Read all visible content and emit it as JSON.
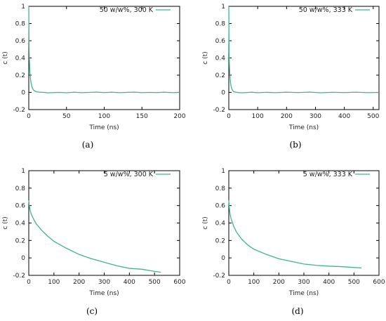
{
  "chart_data": [
    {
      "type": "line",
      "caption": "(a)",
      "legend": "50 w/w%, 300 K",
      "xlabel": "Time (ns)",
      "ylabel": "c (t)",
      "xlim": [
        0,
        200
      ],
      "ylim": [
        -0.2,
        1
      ],
      "xticks": [
        "0",
        "50",
        "100",
        "150",
        "200"
      ],
      "yticks": [
        "-0.2",
        "0",
        "0.2",
        "0.4",
        "0.6",
        "0.8",
        "1"
      ],
      "legend_position": "top-right",
      "line_color": "#3fb58c",
      "series": [
        {
          "x": [
            0,
            0.3,
            0.7,
            1,
            1.5,
            2,
            3,
            4,
            5,
            6,
            8,
            10,
            12,
            15,
            20,
            25,
            30,
            40,
            50,
            60,
            70,
            80,
            90,
            100,
            110,
            120,
            130,
            140,
            150,
            160,
            170,
            180,
            190,
            200
          ],
          "y": [
            1,
            0.6,
            0.42,
            0.33,
            0.24,
            0.18,
            0.11,
            0.07,
            0.045,
            0.03,
            0.015,
            0.008,
            0.004,
            0.002,
            0,
            -0.005,
            -0.003,
            0,
            -0.004,
            0.002,
            -0.003,
            0,
            0.003,
            -0.002,
            0.002,
            -0.003,
            0,
            0.003,
            -0.003,
            0,
            -0.002,
            0.002,
            -0.003,
            0
          ]
        }
      ]
    },
    {
      "type": "line",
      "caption": "(b)",
      "legend": "50 w/w%, 333 K",
      "xlabel": "Time (ns)",
      "ylabel": "c (t)",
      "xlim": [
        0,
        520
      ],
      "ylim": [
        -0.2,
        1
      ],
      "xticks": [
        "0",
        "100",
        "200",
        "300",
        "400",
        "500"
      ],
      "yticks": [
        "-0.2",
        "0",
        "0.2",
        "0.4",
        "0.6",
        "0.8",
        "1"
      ],
      "legend_position": "top-right",
      "line_color": "#3fb58c",
      "series": [
        {
          "x": [
            0,
            0.5,
            1,
            2,
            3,
            4,
            6,
            8,
            10,
            13,
            16,
            20,
            25,
            30,
            40,
            60,
            80,
            100,
            130,
            160,
            200,
            240,
            280,
            320,
            360,
            400,
            440,
            480,
            520
          ],
          "y": [
            1,
            0.65,
            0.48,
            0.33,
            0.24,
            0.18,
            0.11,
            0.07,
            0.045,
            0.025,
            0.012,
            0.005,
            0.002,
            0,
            -0.005,
            -0.002,
            0.002,
            -0.004,
            0.001,
            -0.003,
            0.002,
            -0.002,
            0.003,
            -0.004,
            0.001,
            -0.002,
            0.002,
            -0.003,
            -0.001
          ]
        }
      ]
    },
    {
      "type": "line",
      "caption": "(c)",
      "legend": "5 w/w%, 300 K",
      "xlabel": "Time (ns)",
      "ylabel": "c (t)",
      "xlim": [
        0,
        600
      ],
      "ylim": [
        -0.2,
        1
      ],
      "xticks": [
        "0",
        "100",
        "200",
        "300",
        "400",
        "500",
        "600"
      ],
      "yticks": [
        "-0.2",
        "0",
        "0.2",
        "0.4",
        "0.6",
        "0.8",
        "1"
      ],
      "legend_position": "top-right",
      "line_color": "#3fb58c",
      "series": [
        {
          "x": [
            0,
            2,
            5,
            10,
            20,
            30,
            50,
            75,
            100,
            150,
            200,
            250,
            300,
            350,
            400,
            450,
            500,
            525
          ],
          "y": [
            0.66,
            0.6,
            0.55,
            0.5,
            0.44,
            0.39,
            0.32,
            0.25,
            0.19,
            0.11,
            0.04,
            -0.01,
            -0.05,
            -0.09,
            -0.12,
            -0.13,
            -0.155,
            -0.165
          ]
        }
      ]
    },
    {
      "type": "line",
      "caption": "(d)",
      "legend": "5 w/w%, 333 K",
      "xlabel": "Time (ns)",
      "ylabel": "c (t)",
      "xlim": [
        0,
        600
      ],
      "ylim": [
        -0.2,
        1
      ],
      "xticks": [
        "0",
        "100",
        "200",
        "300",
        "400",
        "500",
        "600"
      ],
      "yticks": [
        "-0.2",
        "0",
        "0.2",
        "0.4",
        "0.6",
        "0.8",
        "1"
      ],
      "legend_position": "top-right",
      "line_color": "#3fb58c",
      "series": [
        {
          "x": [
            0,
            2,
            5,
            10,
            20,
            30,
            50,
            75,
            100,
            150,
            200,
            250,
            300,
            350,
            400,
            450,
            500,
            530
          ],
          "y": [
            0.66,
            0.58,
            0.5,
            0.44,
            0.36,
            0.3,
            0.22,
            0.15,
            0.1,
            0.04,
            -0.01,
            -0.04,
            -0.07,
            -0.085,
            -0.095,
            -0.1,
            -0.11,
            -0.115
          ]
        }
      ]
    }
  ]
}
